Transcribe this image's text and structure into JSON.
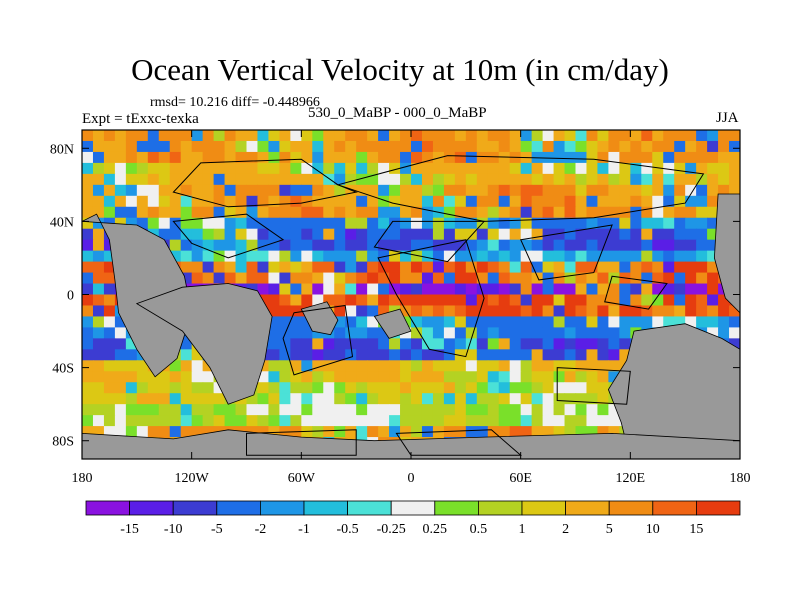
{
  "chart_data": {
    "type": "heatmap",
    "title": "Ocean Vertical Velocity at 10m (in cm/day)",
    "stats_line": "rmsd= 10.216 diff= -0.448966",
    "left_label": "Expt = tExxc-texka",
    "center_label": "530_0_MaBP - 000_0_MaBP",
    "right_label": "JJA",
    "xlim": [
      -180,
      180
    ],
    "ylim": [
      -90,
      90
    ],
    "x_ticks": [
      {
        "value": -180,
        "label": "180"
      },
      {
        "value": -120,
        "label": "120W"
      },
      {
        "value": -60,
        "label": "60W"
      },
      {
        "value": 0,
        "label": "0"
      },
      {
        "value": 60,
        "label": "60E"
      },
      {
        "value": 120,
        "label": "120E"
      },
      {
        "value": 180,
        "label": "180"
      }
    ],
    "y_ticks": [
      {
        "value": 80,
        "label": "80N"
      },
      {
        "value": 40,
        "label": "40N"
      },
      {
        "value": 0,
        "label": "0"
      },
      {
        "value": -40,
        "label": "40S"
      },
      {
        "value": -80,
        "label": "80S"
      }
    ],
    "colorbar": {
      "labels": [
        "-15",
        "-10",
        "-5",
        "-2",
        "-1",
        "-0.5",
        "-0.25",
        "0.25",
        "0.5",
        "1",
        "2",
        "5",
        "10",
        "15"
      ],
      "colors": [
        "#8a12e0",
        "#5a1ee6",
        "#3c3cd2",
        "#1e6ee6",
        "#1e96e6",
        "#23bedc",
        "#4be1d7",
        "#f0f0f0",
        "#7ae02a",
        "#b4d223",
        "#dcc814",
        "#f0aa19",
        "#f08c14",
        "#f06414",
        "#e63c0f"
      ]
    },
    "land_color": "#999999",
    "zonal_bands": [
      {
        "lat": 80,
        "value": 5
      },
      {
        "lat": 65,
        "value": 2
      },
      {
        "lat": 50,
        "value": 5
      },
      {
        "lat": 40,
        "value": -2
      },
      {
        "lat": 30,
        "value": -5
      },
      {
        "lat": 20,
        "value": -1
      },
      {
        "lat": 12,
        "value": 10
      },
      {
        "lat": 5,
        "value": -15
      },
      {
        "lat": 0,
        "value": -10
      },
      {
        "lat": -5,
        "value": 15
      },
      {
        "lat": -15,
        "value": -2
      },
      {
        "lat": -30,
        "value": -5
      },
      {
        "lat": -45,
        "value": 2
      },
      {
        "lat": -55,
        "value": 1
      },
      {
        "lat": -65,
        "value": 0.5
      },
      {
        "lat": -75,
        "value": 5
      }
    ]
  }
}
